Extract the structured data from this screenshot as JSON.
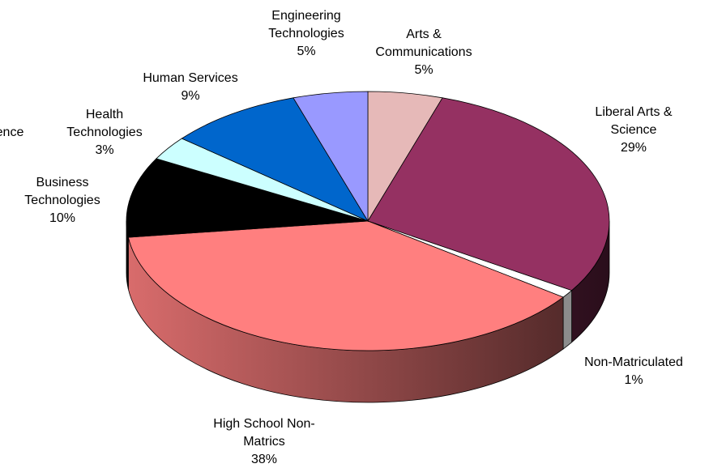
{
  "chart_data": {
    "type": "pie",
    "title": "",
    "three_d": true,
    "legend": "none",
    "slices": [
      {
        "label": [
          "Arts &",
          "Communications"
        ],
        "value_label": "5%",
        "value": 5,
        "color": "#E6B9B8"
      },
      {
        "label": [
          "Liberal Arts &",
          "Science"
        ],
        "value_label": "29%",
        "value": 29,
        "color": "#953162"
      },
      {
        "label": [
          "Non-Matriculated"
        ],
        "value_label": "1%",
        "value": 1,
        "color": "#FFFFFF"
      },
      {
        "label": [
          "High School Non-",
          "Matrics"
        ],
        "value_label": "38%",
        "value": 38,
        "color": "#FF7F7F"
      },
      {
        "label": [
          "Business",
          "Technologies"
        ],
        "value_label": "10%",
        "value": 10,
        "color": "#000000"
      },
      {
        "label": [
          "Health",
          "Technologies"
        ],
        "value_label": "3%",
        "value": 3,
        "color": "#CCFFFF"
      },
      {
        "label": [
          "ence"
        ],
        "value_label": "",
        "value": 0,
        "color": "#FFFF99"
      },
      {
        "label": [
          "Human Services"
        ],
        "value_label": "9%",
        "value": 9,
        "color": "#0066CC"
      },
      {
        "label": [
          "Engineering",
          "Technologies"
        ],
        "value_label": "5%",
        "value": 5,
        "color": "#9999FF"
      }
    ]
  }
}
